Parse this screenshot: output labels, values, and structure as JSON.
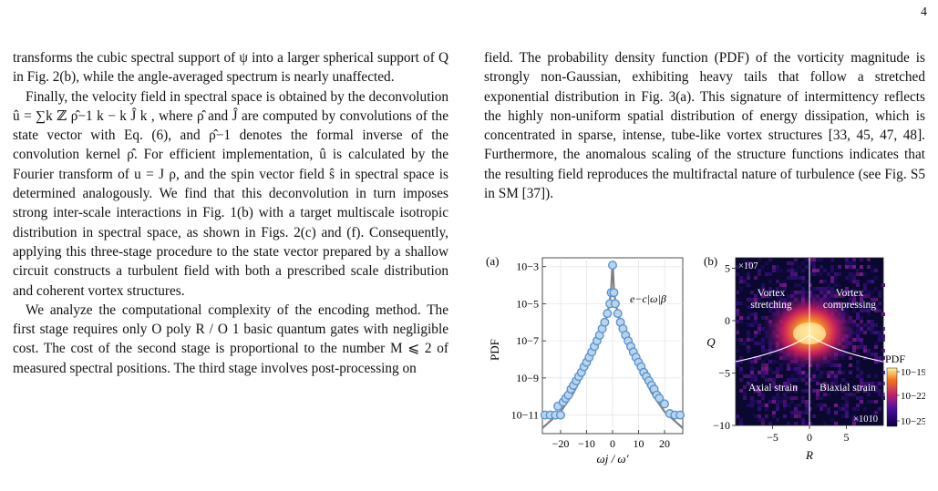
{
  "page_number": "4",
  "left_column": {
    "p1": "transforms the cubic spectral support of ψ  into a larger spherical support of Q in Fig. 2(b), while the angle-averaged spectrum is nearly unaffected.",
    "p2": "Finally, the velocity field in spectral space is obtained by the deconvolution û = ∑k ℤ ρ̂−1 k − k Ĵ k , where ρ̂ and Ĵ are computed by convolutions of the state vector with Eq. (6), and ρ̂−1 denotes the formal inverse of the convolution kernel ρ̂. For efficient implementation, û is calculated by the Fourier transform of u = J ρ, and the spin vector field ŝ in spectral space is determined analogously. We find that this deconvolution in turn imposes strong inter-scale interactions in Fig. 1(b) with a target multiscale isotropic distribution in spectral space, as shown in Figs. 2(c) and (f). Consequently, applying this three-stage procedure to the state vector prepared by a shallow circuit constructs a turbulent field with both a prescribed scale distribution and coherent vortex structures.",
    "p3": "We analyze the computational complexity of the encoding method. The first stage requires only O poly R  / O 1 basic quantum gates with negligible cost. The cost of the second stage is proportional to the number M ⩽ 2  of measured spectral positions. The third stage involves post-processing on"
  },
  "right_column": {
    "p1": "field. The probability density function (PDF) of the vorticity magnitude is strongly non-Gaussian, exhibiting heavy tails that follow a stretched exponential distribution in Fig. 3(a). This signature of intermittency reflects the highly non-uniform spatial distribution of energy dissipation, which is concentrated in sparse, intense, tube-like vortex structures [33, 45, 47, 48]. Furthermore, the anomalous scaling of the structure functions indicates that the resulting field reproduces the multifractal nature of turbulence (see Fig. S5 in SM [37])."
  },
  "figure": {
    "panel_a": {
      "label": "(a)",
      "ylabel": "PDF",
      "xlabel": "ωj / ω′",
      "annotation": "e−c|ω|β",
      "y_ticks": [
        "10−3",
        "10−5",
        "10−7",
        "10−9",
        "10−11"
      ],
      "x_ticks": [
        "−20",
        "−10",
        "0",
        "10",
        "20"
      ]
    },
    "panel_b": {
      "label": "(b)",
      "ylabel": "Q",
      "xlabel": "R",
      "y_multiplier": "×107",
      "x_multiplier": "×1010",
      "y_ticks": [
        "5",
        "0",
        "−5",
        "−10"
      ],
      "x_ticks": [
        "−5",
        "0",
        "5"
      ],
      "regions": [
        "Vortex",
        "stretching",
        "Vortex",
        "compressing",
        "Axial strain",
        "Biaxial strain"
      ],
      "colorbar_title": "PDF",
      "colorbar_ticks": [
        "10−19",
        "10−22",
        "10−25"
      ]
    }
  },
  "chart_data": [
    {
      "type": "scatter",
      "title": "",
      "xlabel": "ωj / ω′",
      "ylabel": "PDF",
      "yscale": "log",
      "xlim": [
        -27,
        27
      ],
      "ylim": [
        1e-12,
        0.003
      ],
      "series": [
        {
          "marker": "circle",
          "x": [
            -26,
            -24,
            -22,
            -21,
            -20,
            -19,
            -18,
            -17,
            -16,
            -15,
            -14,
            -13,
            -12,
            -11,
            -10,
            -9,
            -8,
            -7,
            -6,
            -5,
            -4,
            -3,
            -2,
            -1,
            -0.5,
            0,
            0.5,
            1,
            2,
            3,
            4,
            5,
            6,
            7,
            8,
            9,
            10,
            11,
            12,
            13,
            14,
            15,
            16,
            17,
            18,
            20,
            22,
            24,
            26
          ],
          "y": [
            1e-11,
            1e-11,
            1e-11,
            3e-11,
            1e-11,
            5e-11,
            8e-11,
            1.2e-10,
            2.5e-10,
            4e-10,
            7e-10,
            1.2e-09,
            2e-09,
            4e-09,
            7e-09,
            1.3e-08,
            2.5e-08,
            5e-08,
            1e-07,
            2e-07,
            4.5e-07,
            1e-06,
            3e-06,
            1e-05,
            4e-05,
            0.0012,
            4e-05,
            1e-05,
            3e-06,
            1e-06,
            4.5e-07,
            2e-07,
            1e-07,
            5e-08,
            2.5e-08,
            1.3e-08,
            7e-09,
            4e-09,
            2e-09,
            1.2e-09,
            7e-10,
            4e-10,
            2.5e-10,
            1.2e-10,
            8e-11,
            4e-11,
            1.2e-11,
            1e-11,
            1e-11
          ]
        },
        {
          "marker": "line",
          "x": [
            -27,
            -20,
            -15,
            -10,
            -7,
            -5,
            -3,
            -2,
            -1,
            -0.5,
            0,
            0.5,
            1,
            2,
            3,
            5,
            7,
            10,
            15,
            20,
            27
          ],
          "y": [
            2e-12,
            1.5e-11,
            1.6e-10,
            4e-09,
            3.5e-08,
            1.6e-07,
            9e-07,
            3e-06,
            1.5e-05,
            8e-05,
            0.002,
            8e-05,
            1.5e-05,
            3e-06,
            9e-07,
            1.6e-07,
            3.5e-08,
            4e-09,
            1.6e-10,
            1.5e-11,
            2e-12
          ]
        }
      ]
    },
    {
      "type": "heatmap",
      "title": "",
      "xlabel": "R",
      "ylabel": "Q",
      "xlim": [
        -10,
        10
      ],
      "ylim": [
        -10,
        6
      ],
      "x_multiplier": "×1010",
      "y_multiplier": "×107",
      "colorbar_label": "PDF",
      "colorbar_range": [
        "10−25",
        "10−19"
      ]
    }
  ]
}
